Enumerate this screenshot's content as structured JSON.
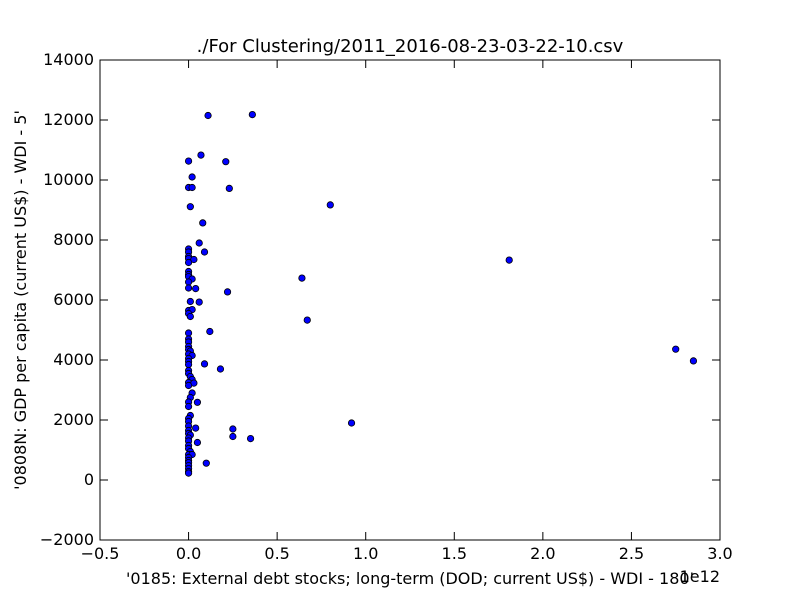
{
  "chart_data": {
    "type": "scatter",
    "title": "./For Clustering/2011_2016-08-23-03-22-10.csv",
    "xlabel": "'0185: External debt stocks; long-term  (DOD; current US$) - WDI - 180'",
    "ylabel": "'0808N: GDP per capita  (current US$) - WDI - 5'",
    "x_offset_label": "1e12",
    "xlim": [
      -0.5,
      3.0
    ],
    "ylim": [
      -2000,
      14000
    ],
    "x_ticks": [
      "−0.5",
      "0.0",
      "0.5",
      "1.0",
      "1.5",
      "2.0",
      "2.5",
      "3.0"
    ],
    "y_ticks": [
      "−2000",
      "0",
      "2000",
      "4000",
      "6000",
      "8000",
      "10000",
      "12000",
      "14000"
    ],
    "grid": false,
    "marker_color": "#0000ff",
    "marker_edge_color": "#000000",
    "points": [
      {
        "x": 0.11,
        "y": 12150
      },
      {
        "x": 0.36,
        "y": 12180
      },
      {
        "x": 0.07,
        "y": 10830
      },
      {
        "x": 0.21,
        "y": 10610
      },
      {
        "x": 0.0,
        "y": 10630
      },
      {
        "x": 0.02,
        "y": 10100
      },
      {
        "x": 0.0,
        "y": 9750
      },
      {
        "x": 0.02,
        "y": 9750
      },
      {
        "x": 0.23,
        "y": 9720
      },
      {
        "x": 0.01,
        "y": 9110
      },
      {
        "x": 0.8,
        "y": 9170
      },
      {
        "x": 0.08,
        "y": 8570
      },
      {
        "x": 0.06,
        "y": 7900
      },
      {
        "x": 0.0,
        "y": 7700
      },
      {
        "x": 0.0,
        "y": 7600
      },
      {
        "x": 0.09,
        "y": 7600
      },
      {
        "x": 0.0,
        "y": 7450
      },
      {
        "x": 0.0,
        "y": 7380
      },
      {
        "x": 0.03,
        "y": 7350
      },
      {
        "x": 1.81,
        "y": 7330
      },
      {
        "x": 0.0,
        "y": 7250
      },
      {
        "x": 0.0,
        "y": 6950
      },
      {
        "x": 0.0,
        "y": 6850
      },
      {
        "x": 0.0,
        "y": 6780
      },
      {
        "x": 0.02,
        "y": 6700
      },
      {
        "x": 0.64,
        "y": 6730
      },
      {
        "x": 0.0,
        "y": 6600
      },
      {
        "x": 0.0,
        "y": 6400
      },
      {
        "x": 0.04,
        "y": 6380
      },
      {
        "x": 0.22,
        "y": 6270
      },
      {
        "x": 0.01,
        "y": 5950
      },
      {
        "x": 0.06,
        "y": 5930
      },
      {
        "x": 0.0,
        "y": 5650
      },
      {
        "x": 0.02,
        "y": 5680
      },
      {
        "x": 0.0,
        "y": 5550
      },
      {
        "x": 0.01,
        "y": 5450
      },
      {
        "x": 0.67,
        "y": 5330
      },
      {
        "x": 0.12,
        "y": 4950
      },
      {
        "x": 0.0,
        "y": 4900
      },
      {
        "x": 0.0,
        "y": 4700
      },
      {
        "x": 0.0,
        "y": 4600
      },
      {
        "x": 0.0,
        "y": 4450
      },
      {
        "x": 0.0,
        "y": 4350
      },
      {
        "x": 0.01,
        "y": 4300
      },
      {
        "x": 2.75,
        "y": 4360
      },
      {
        "x": 0.0,
        "y": 4200
      },
      {
        "x": 0.02,
        "y": 4150
      },
      {
        "x": 0.0,
        "y": 4050
      },
      {
        "x": 0.0,
        "y": 3950
      },
      {
        "x": 2.85,
        "y": 3970
      },
      {
        "x": 0.09,
        "y": 3870
      },
      {
        "x": 0.0,
        "y": 3850
      },
      {
        "x": 0.18,
        "y": 3700
      },
      {
        "x": 0.0,
        "y": 3650
      },
      {
        "x": 0.0,
        "y": 3550
      },
      {
        "x": 0.01,
        "y": 3450
      },
      {
        "x": 0.02,
        "y": 3350
      },
      {
        "x": 0.0,
        "y": 3250
      },
      {
        "x": 0.03,
        "y": 3230
      },
      {
        "x": 0.0,
        "y": 3150
      },
      {
        "x": 0.02,
        "y": 2900
      },
      {
        "x": 0.01,
        "y": 2750
      },
      {
        "x": 0.0,
        "y": 2600
      },
      {
        "x": 0.05,
        "y": 2590
      },
      {
        "x": 0.0,
        "y": 2450
      },
      {
        "x": 0.01,
        "y": 2150
      },
      {
        "x": 0.0,
        "y": 2050
      },
      {
        "x": 0.0,
        "y": 1950
      },
      {
        "x": 0.92,
        "y": 1900
      },
      {
        "x": 0.0,
        "y": 1800
      },
      {
        "x": 0.04,
        "y": 1730
      },
      {
        "x": 0.25,
        "y": 1700
      },
      {
        "x": 0.0,
        "y": 1650
      },
      {
        "x": 0.0,
        "y": 1550
      },
      {
        "x": 0.01,
        "y": 1500
      },
      {
        "x": 0.25,
        "y": 1450
      },
      {
        "x": 0.0,
        "y": 1400
      },
      {
        "x": 0.35,
        "y": 1380
      },
      {
        "x": 0.0,
        "y": 1300
      },
      {
        "x": 0.05,
        "y": 1250
      },
      {
        "x": 0.0,
        "y": 1150
      },
      {
        "x": 0.0,
        "y": 1050
      },
      {
        "x": 0.01,
        "y": 950
      },
      {
        "x": 0.0,
        "y": 850
      },
      {
        "x": 0.02,
        "y": 850
      },
      {
        "x": 0.0,
        "y": 750
      },
      {
        "x": 0.0,
        "y": 650
      },
      {
        "x": 0.0,
        "y": 580
      },
      {
        "x": 0.1,
        "y": 560
      },
      {
        "x": 0.0,
        "y": 480
      },
      {
        "x": 0.0,
        "y": 380
      },
      {
        "x": 0.0,
        "y": 280
      },
      {
        "x": 0.0,
        "y": 230
      }
    ]
  }
}
